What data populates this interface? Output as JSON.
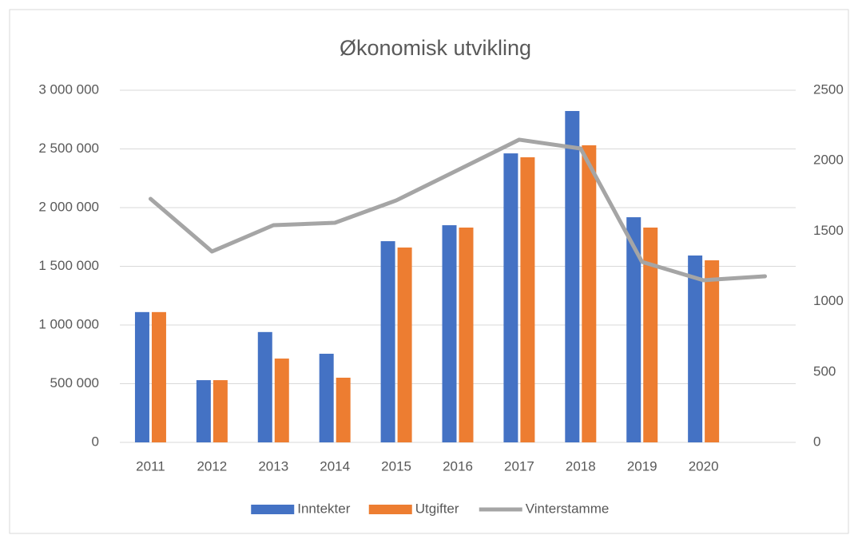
{
  "chart_data": {
    "type": "bar",
    "title": "Økonomisk utvikling",
    "categories": [
      "2011",
      "2012",
      "2013",
      "2014",
      "2015",
      "2016",
      "2017",
      "2018",
      "2019",
      "2020",
      null
    ],
    "series": [
      {
        "name": "Inntekter",
        "color": "#4472c4",
        "type": "bar",
        "values": [
          1110000,
          530000,
          940000,
          755000,
          1714000,
          1850000,
          2462000,
          2823000,
          1918000,
          1592000,
          null
        ]
      },
      {
        "name": "Utgifter",
        "color": "#ed7d31",
        "type": "bar",
        "values": [
          1110000,
          530000,
          714000,
          551000,
          1660000,
          1830000,
          2429000,
          2531000,
          1830000,
          1551000,
          null
        ]
      },
      {
        "name": "Vinterstamme",
        "color": "#a5a5a5",
        "type": "line",
        "axis": "y2",
        "values": [
          1729,
          1355,
          1542,
          1559,
          1718,
          1933,
          2149,
          2086,
          1281,
          1151,
          1179
        ]
      }
    ],
    "ylim": [
      0,
      3000000
    ],
    "yticks": [
      0,
      {
        "value": 500000,
        "label": "500 000"
      },
      {
        "value": 1000000,
        "label": "1 000 000"
      },
      {
        "value": 1500000,
        "label": "1 500 000"
      },
      {
        "value": 2000000,
        "label": "2 000 000"
      },
      {
        "value": 2500000,
        "label": "2 500 000"
      },
      {
        "value": 3000000,
        "label": "3 000 000"
      }
    ],
    "y2lim": [
      0,
      2500
    ],
    "y2ticks": [
      0,
      500,
      1000,
      1500,
      2000,
      2500
    ],
    "grid": true,
    "legend": "bottom"
  }
}
